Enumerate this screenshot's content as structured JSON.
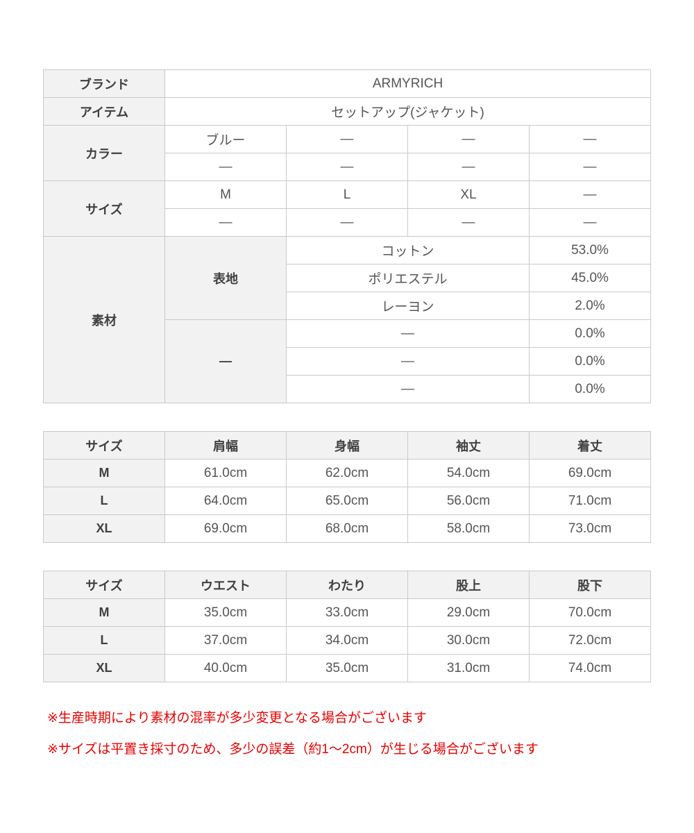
{
  "colors": {
    "header_bg": "#f2f2f2",
    "border": "#c9c9c9",
    "label_text": "#404040",
    "value_text": "#555555",
    "note_red": "#e60000",
    "page_bg": "#ffffff"
  },
  "product": {
    "brand_label": "ブランド",
    "brand_value": "ARMYRICH",
    "item_label": "アイテム",
    "item_value": "セットアップ(ジャケット)",
    "color_label": "カラー",
    "color_rows": [
      [
        "ブルー",
        "—",
        "—",
        "—"
      ],
      [
        "—",
        "—",
        "—",
        "—"
      ]
    ],
    "size_label": "サイズ",
    "size_rows": [
      [
        "M",
        "L",
        "XL",
        "—"
      ],
      [
        "—",
        "—",
        "—",
        "—"
      ]
    ],
    "material_label": "素材",
    "material_groups": [
      {
        "group": "表地",
        "rows": [
          {
            "name": "コットン",
            "pct": "53.0%"
          },
          {
            "name": "ポリエステル",
            "pct": "45.0%"
          },
          {
            "name": "レーヨン",
            "pct": "2.0%"
          }
        ]
      },
      {
        "group": "—",
        "rows": [
          {
            "name": "—",
            "pct": "0.0%"
          },
          {
            "name": "—",
            "pct": "0.0%"
          },
          {
            "name": "—",
            "pct": "0.0%"
          }
        ]
      }
    ]
  },
  "jacket_table": {
    "headers": [
      "サイズ",
      "肩幅",
      "身幅",
      "袖丈",
      "着丈"
    ],
    "rows": [
      {
        "size": "M",
        "values": [
          "61.0cm",
          "62.0cm",
          "54.0cm",
          "69.0cm"
        ]
      },
      {
        "size": "L",
        "values": [
          "64.0cm",
          "65.0cm",
          "56.0cm",
          "71.0cm"
        ]
      },
      {
        "size": "XL",
        "values": [
          "69.0cm",
          "68.0cm",
          "58.0cm",
          "73.0cm"
        ]
      }
    ]
  },
  "pants_table": {
    "headers": [
      "サイズ",
      "ウエスト",
      "わたり",
      "股上",
      "股下"
    ],
    "rows": [
      {
        "size": "M",
        "values": [
          "35.0cm",
          "33.0cm",
          "29.0cm",
          "70.0cm"
        ]
      },
      {
        "size": "L",
        "values": [
          "37.0cm",
          "34.0cm",
          "30.0cm",
          "72.0cm"
        ]
      },
      {
        "size": "XL",
        "values": [
          "40.0cm",
          "35.0cm",
          "31.0cm",
          "74.0cm"
        ]
      }
    ]
  },
  "notes": [
    "※生産時期により素材の混率が多少変更となる場合がございます",
    "※サイズは平置き採寸のため、多少の誤差（約1〜2cm）が生じる場合がございます"
  ]
}
